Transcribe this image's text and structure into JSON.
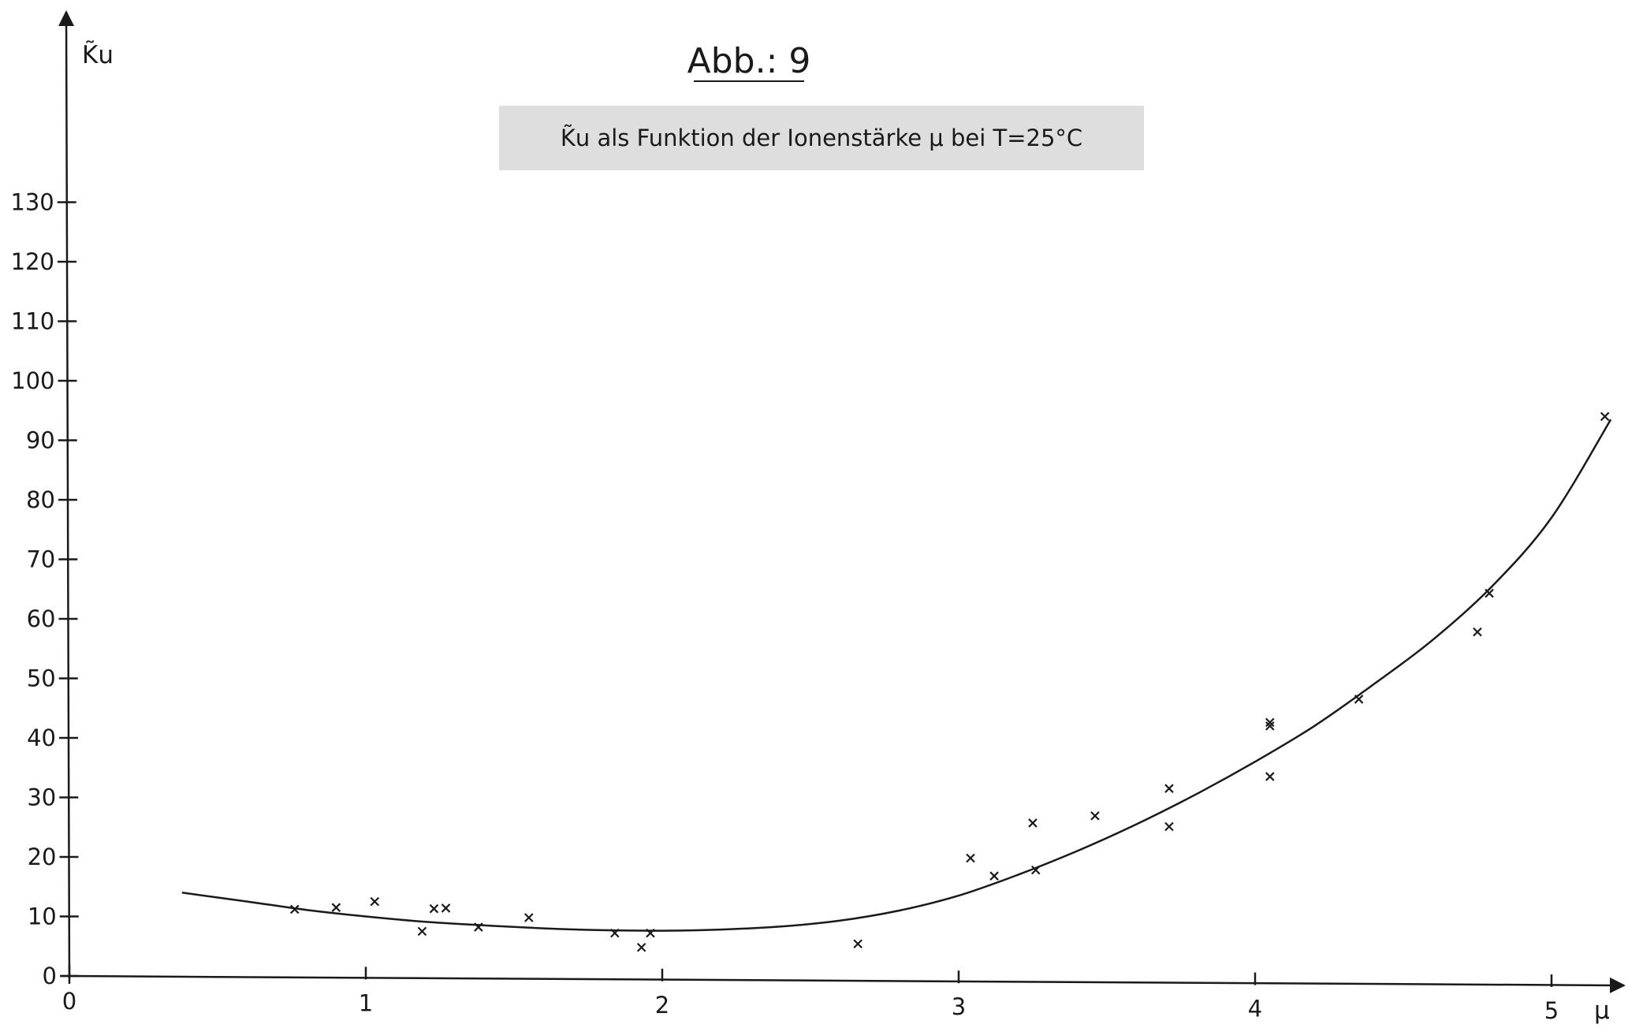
{
  "chart_data": {
    "type": "scatter",
    "title": "Abb.: 9",
    "subtitle": "K̃u als Funktion der Ionenstärke μ bei T=25°C",
    "xlabel": "μ",
    "ylabel": "K̃u",
    "xlim": [
      0,
      5.2
    ],
    "ylim": [
      0,
      145
    ],
    "x_ticks": [
      0,
      1,
      2,
      3,
      4,
      5
    ],
    "y_ticks": [
      0,
      10,
      20,
      30,
      40,
      50,
      60,
      70,
      80,
      90,
      100,
      110,
      120,
      130
    ],
    "grid": false,
    "series": [
      {
        "marker": "x",
        "color": "#1a1a1a",
        "points": [
          [
            0.76,
            11.2
          ],
          [
            0.9,
            11.5
          ],
          [
            1.03,
            12.5
          ],
          [
            1.19,
            7.5
          ],
          [
            1.23,
            11.3
          ],
          [
            1.27,
            11.4
          ],
          [
            1.38,
            8.2
          ],
          [
            1.55,
            9.8
          ],
          [
            1.84,
            7.2
          ],
          [
            1.93,
            4.8
          ],
          [
            1.96,
            7.2
          ],
          [
            2.66,
            5.4
          ],
          [
            3.04,
            19.8
          ],
          [
            3.12,
            16.8
          ],
          [
            3.25,
            25.7
          ],
          [
            3.26,
            17.8
          ],
          [
            3.46,
            26.9
          ],
          [
            3.71,
            25.1
          ],
          [
            3.71,
            31.5
          ],
          [
            4.05,
            42.0
          ],
          [
            4.05,
            42.6
          ],
          [
            4.05,
            33.5
          ],
          [
            4.35,
            46.5
          ],
          [
            4.75,
            57.8
          ],
          [
            4.79,
            64.3
          ],
          [
            5.18,
            94.0
          ]
        ]
      },
      {
        "type": "line",
        "color": "#1a1a1a",
        "points": [
          [
            0.38,
            14.0
          ],
          [
            0.6,
            12.5
          ],
          [
            0.8,
            11.1
          ],
          [
            1.0,
            10.0
          ],
          [
            1.2,
            9.1
          ],
          [
            1.4,
            8.5
          ],
          [
            1.6,
            8.0
          ],
          [
            1.8,
            7.7
          ],
          [
            2.0,
            7.6
          ],
          [
            2.2,
            7.8
          ],
          [
            2.4,
            8.3
          ],
          [
            2.6,
            9.3
          ],
          [
            2.8,
            11.0
          ],
          [
            3.0,
            13.5
          ],
          [
            3.2,
            17.0
          ],
          [
            3.4,
            21.0
          ],
          [
            3.6,
            25.5
          ],
          [
            3.8,
            30.5
          ],
          [
            4.0,
            36.0
          ],
          [
            4.2,
            42.0
          ],
          [
            4.4,
            49.0
          ],
          [
            4.6,
            56.5
          ],
          [
            4.8,
            65.5
          ],
          [
            5.0,
            77.0
          ],
          [
            5.2,
            93.5
          ]
        ]
      }
    ]
  }
}
